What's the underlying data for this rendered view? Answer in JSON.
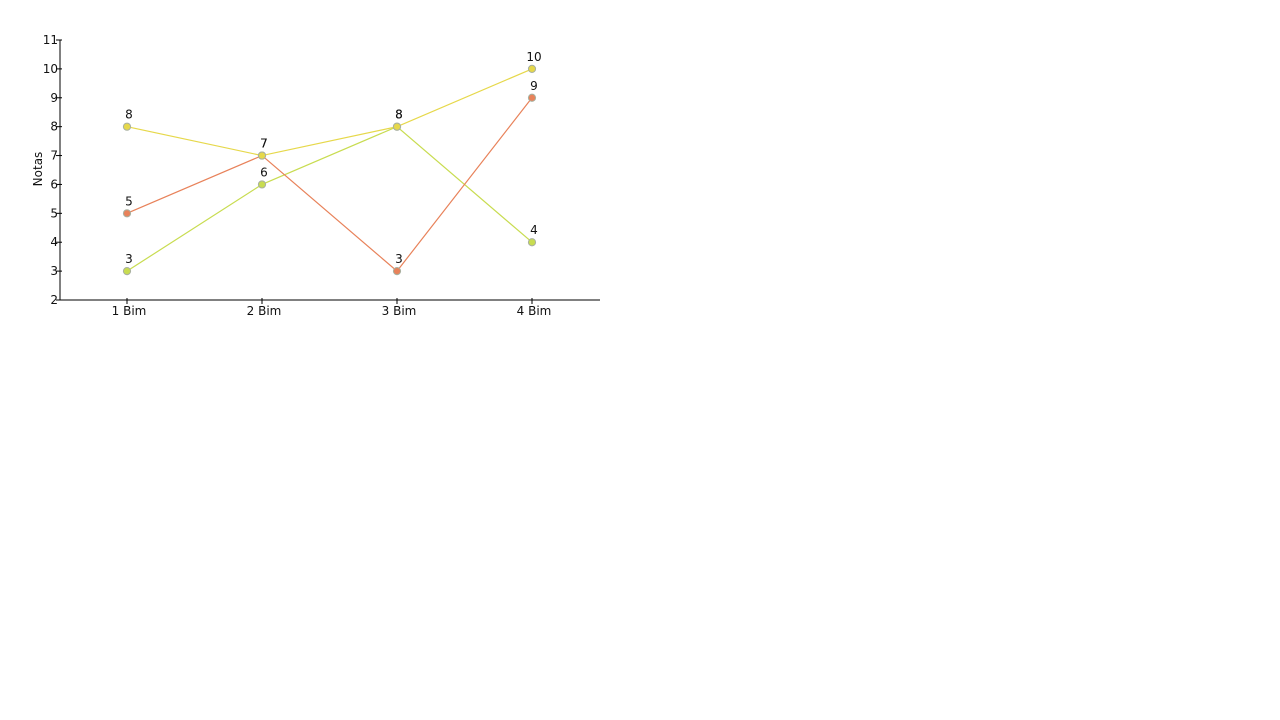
{
  "chart_data": {
    "type": "line",
    "categories": [
      "1 Bim",
      "2 Bim",
      "3 Bim",
      "4 Bim"
    ],
    "ylabel": "Notas",
    "xlabel": "",
    "ylim": [
      2,
      11
    ],
    "yticks": [
      "2",
      "3",
      "4",
      "5",
      "6",
      "7",
      "8",
      "9",
      "10",
      "11"
    ],
    "grid": false,
    "data_labels": true,
    "series": [
      {
        "values": [
          3,
          6,
          8,
          4
        ],
        "color": "#c8dc50"
      },
      {
        "values": [
          5,
          7,
          3,
          9
        ],
        "color": "#e8825a"
      },
      {
        "values": [
          8,
          7,
          8,
          10
        ],
        "color": "#e6d84a"
      }
    ]
  }
}
